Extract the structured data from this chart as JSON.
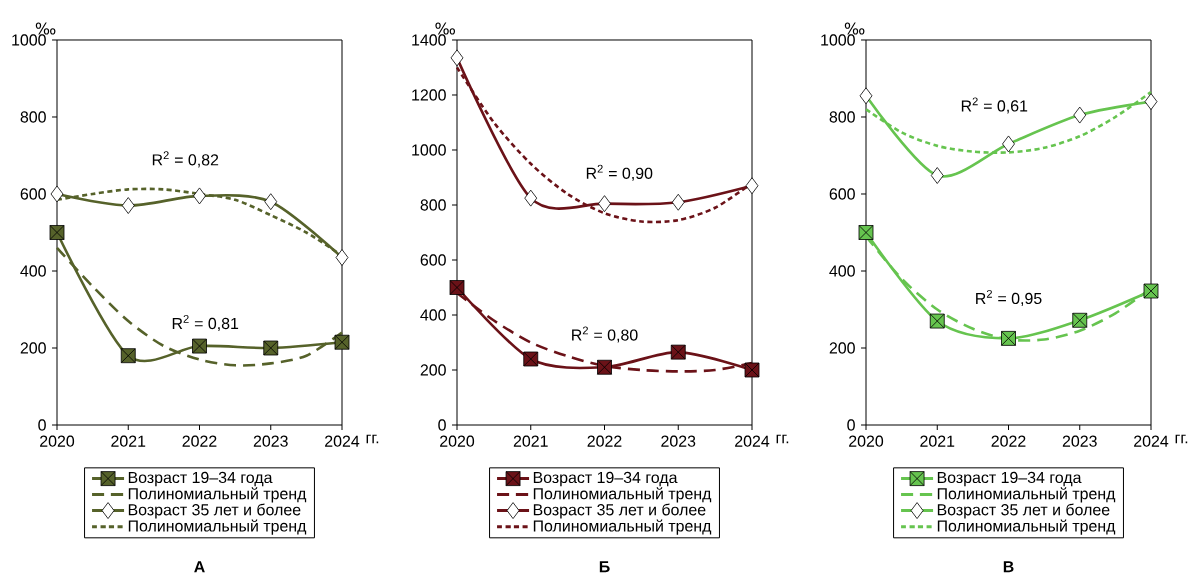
{
  "chart_data": [
    {
      "type": "line",
      "title": "А",
      "ylabel": "‰",
      "xlabel": "гг.",
      "x": [
        2020,
        2021,
        2022,
        2023,
        2024
      ],
      "xlim": [
        2020,
        2024
      ],
      "xticks": [
        2020,
        2021,
        2022,
        2023,
        2024
      ],
      "ylim": [
        0,
        1000
      ],
      "yticks": [
        0,
        200,
        400,
        600,
        800,
        1000
      ],
      "legend": "bottom",
      "series": [
        {
          "name": "Возраст 19–34 года",
          "color": "#56622a",
          "marker": "square",
          "line_style": "solid",
          "values": [
            500,
            180,
            205,
            200,
            215
          ]
        },
        {
          "name": "Полиномиальный тренд",
          "color": "#56622a",
          "marker": "none",
          "line_style": "dashed",
          "x": [
            2020,
            2020.5,
            2021,
            2021.5,
            2022,
            2022.5,
            2023,
            2023.5,
            2024
          ],
          "values": [
            460,
            360,
            270,
            205,
            170,
            155,
            160,
            180,
            240
          ]
        },
        {
          "name": "Возраст 35 лет и более",
          "color": "#56622a",
          "marker": "diamond",
          "line_style": "solid",
          "values": [
            600,
            570,
            595,
            580,
            435
          ]
        },
        {
          "name": "Полиномиальный тренд",
          "color": "#56622a",
          "marker": "none",
          "line_style": "dotted",
          "x": [
            2020,
            2020.5,
            2021,
            2021.5,
            2022,
            2022.5,
            2023,
            2023.5,
            2024
          ],
          "values": [
            585,
            600,
            612,
            612,
            600,
            585,
            545,
            500,
            440
          ]
        }
      ],
      "annotations": [
        "R$^{2}$ = 0,82",
        "R$^{2}$ = 0,81"
      ]
    },
    {
      "type": "line",
      "title": "Б",
      "ylabel": "‰",
      "xlabel": "гг.",
      "x": [
        2020,
        2021,
        2022,
        2023,
        2024
      ],
      "xlim": [
        2020,
        2024
      ],
      "xticks": [
        2020,
        2021,
        2022,
        2023,
        2024
      ],
      "ylim": [
        0,
        1400
      ],
      "yticks": [
        0,
        200,
        400,
        600,
        800,
        1000,
        1200,
        1400
      ],
      "legend": "bottom",
      "series": [
        {
          "name": "Возраст 19–34 года",
          "color": "#6b1218",
          "marker": "square",
          "line_style": "solid",
          "values": [
            500,
            240,
            210,
            265,
            200
          ]
        },
        {
          "name": "Полиномиальный тренд",
          "color": "#6b1218",
          "marker": "none",
          "line_style": "dashed",
          "x": [
            2020,
            2020.5,
            2021,
            2021.5,
            2022,
            2022.5,
            2023,
            2023.5,
            2024
          ],
          "values": [
            480,
            380,
            300,
            250,
            215,
            200,
            195,
            200,
            225
          ]
        },
        {
          "name": "Возраст 35 лет и более",
          "color": "#6b1218",
          "marker": "diamond",
          "line_style": "solid",
          "values": [
            1335,
            825,
            805,
            810,
            870
          ]
        },
        {
          "name": "Полиномиальный тренд",
          "color": "#6b1218",
          "marker": "none",
          "line_style": "dotted",
          "x": [
            2020,
            2020.5,
            2021,
            2021.5,
            2022,
            2022.5,
            2023,
            2023.5,
            2024
          ],
          "values": [
            1300,
            1100,
            950,
            840,
            770,
            740,
            745,
            790,
            880
          ]
        }
      ],
      "annotations": [
        "R$^{2}$ = 0,90",
        "R$^{2}$ = 0,80"
      ]
    },
    {
      "type": "line",
      "title": "В",
      "ylabel": "‰",
      "xlabel": "гг.",
      "x": [
        2020,
        2021,
        2022,
        2023,
        2024
      ],
      "xlim": [
        2020,
        2024
      ],
      "xticks": [
        2020,
        2021,
        2022,
        2023,
        2024
      ],
      "ylim": [
        0,
        1000
      ],
      "yticks": [
        0,
        200,
        400,
        600,
        800,
        1000
      ],
      "legend": "bottom",
      "series": [
        {
          "name": "Возраст 19–34 года",
          "color": "#66c44f",
          "marker": "square",
          "line_style": "solid",
          "values": [
            500,
            270,
            225,
            272,
            348
          ]
        },
        {
          "name": "Полиномиальный тренд",
          "color": "#66c44f",
          "marker": "none",
          "line_style": "dashed",
          "x": [
            2020,
            2020.5,
            2021,
            2021.5,
            2022,
            2022.5,
            2023,
            2023.5,
            2024
          ],
          "values": [
            490,
            380,
            300,
            250,
            222,
            222,
            245,
            290,
            355
          ]
        },
        {
          "name": "Возраст 35 лет и более",
          "color": "#66c44f",
          "marker": "diamond",
          "line_style": "solid",
          "values": [
            855,
            648,
            730,
            805,
            840
          ]
        },
        {
          "name": "Полиномиальный тренд",
          "color": "#66c44f",
          "marker": "none",
          "line_style": "dotted",
          "x": [
            2020,
            2020.5,
            2021,
            2021.5,
            2022,
            2022.5,
            2023,
            2023.5,
            2024
          ],
          "values": [
            820,
            760,
            725,
            710,
            708,
            720,
            750,
            800,
            865
          ]
        }
      ],
      "annotations": [
        "R$^{2}$ = 0,61",
        "R$^{2}$ = 0,95"
      ]
    }
  ]
}
